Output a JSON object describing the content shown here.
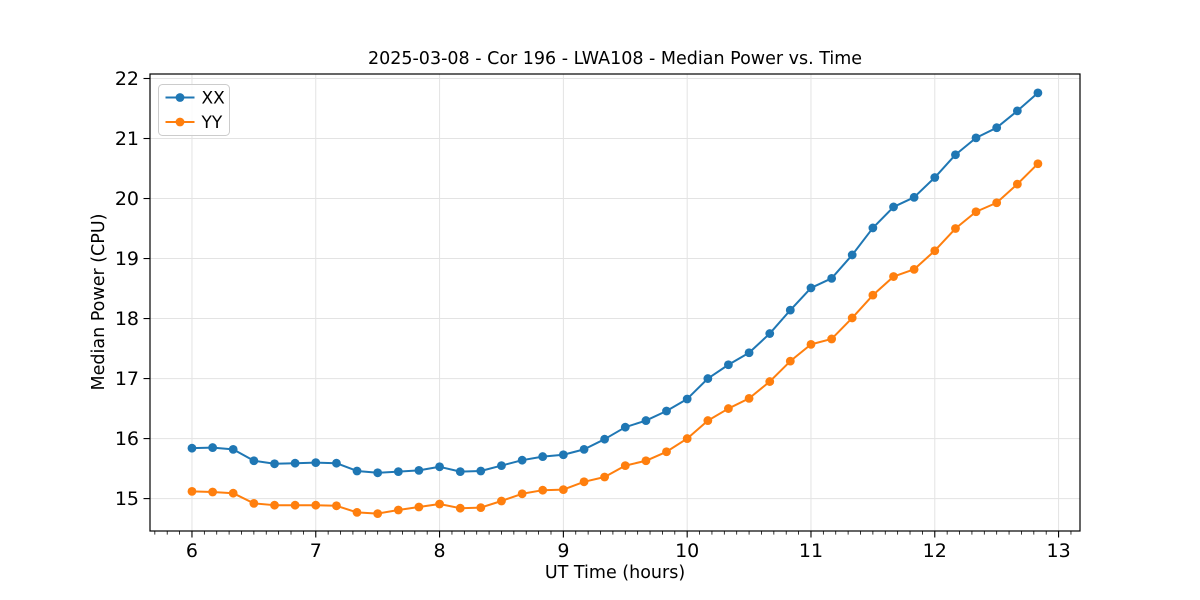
{
  "chart_data": {
    "type": "line",
    "title": "2025-03-08 - Cor 196 - LWA108 - Median Power vs. Time",
    "xlabel": "UT Time (hours)",
    "ylabel": "Median Power (CPU)",
    "x": [
      6.0,
      6.167,
      6.333,
      6.5,
      6.667,
      6.833,
      7.0,
      7.167,
      7.333,
      7.5,
      7.667,
      7.833,
      8.0,
      8.167,
      8.333,
      8.5,
      8.667,
      8.833,
      9.0,
      9.167,
      9.333,
      9.5,
      9.667,
      9.833,
      10.0,
      10.167,
      10.333,
      10.5,
      10.667,
      10.833,
      11.0,
      11.167,
      11.333,
      11.5,
      11.667,
      11.833,
      12.0,
      12.167,
      12.333,
      12.5,
      12.667,
      12.833
    ],
    "series": [
      {
        "name": "XX",
        "color": "#1f77b4",
        "values": [
          15.84,
          15.85,
          15.82,
          15.63,
          15.58,
          15.59,
          15.6,
          15.59,
          15.46,
          15.43,
          15.45,
          15.47,
          15.53,
          15.45,
          15.46,
          15.55,
          15.64,
          15.7,
          15.73,
          15.82,
          15.99,
          16.19,
          16.3,
          16.46,
          16.66,
          17.0,
          17.23,
          17.43,
          17.75,
          18.14,
          18.51,
          18.67,
          19.06,
          19.51,
          19.86,
          20.02,
          20.35,
          20.73,
          21.01,
          21.18,
          21.46,
          21.76
        ]
      },
      {
        "name": "YY",
        "color": "#ff7f0e",
        "values": [
          15.12,
          15.11,
          15.09,
          14.92,
          14.89,
          14.89,
          14.89,
          14.88,
          14.77,
          14.75,
          14.81,
          14.86,
          14.91,
          14.84,
          14.85,
          14.96,
          15.08,
          15.14,
          15.15,
          15.28,
          15.36,
          15.55,
          15.63,
          15.78,
          16.0,
          16.3,
          16.5,
          16.67,
          16.95,
          17.29,
          17.57,
          17.66,
          18.01,
          18.39,
          18.7,
          18.82,
          19.13,
          19.5,
          19.78,
          19.93,
          20.24,
          20.58
        ]
      }
    ],
    "xlim": [
      5.661,
      13.173
    ],
    "ylim": [
      14.46,
      22.075
    ],
    "x_ticks": [
      6,
      7,
      8,
      9,
      10,
      11,
      12,
      13
    ],
    "y_ticks": [
      15,
      16,
      17,
      18,
      19,
      20,
      21,
      22
    ],
    "x_minor_step": 0.1,
    "grid": true,
    "grid_color": "#e3e3e3",
    "spine_color": "#000000",
    "background": "#ffffff",
    "marker": "circle",
    "legend": {
      "position": "upper-left",
      "entries": [
        "XX",
        "YY"
      ]
    }
  }
}
